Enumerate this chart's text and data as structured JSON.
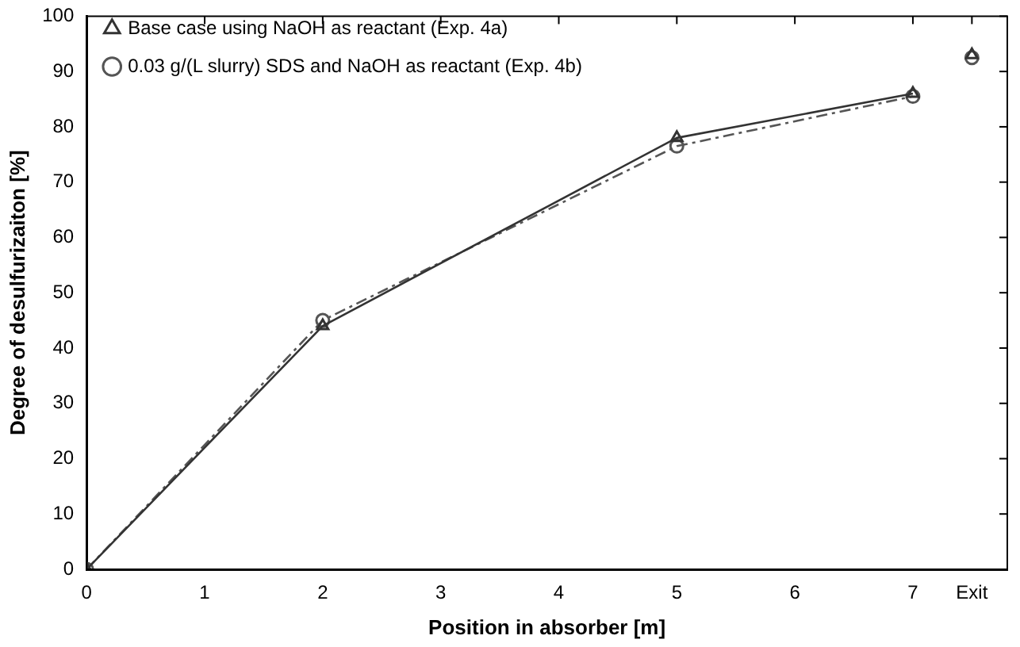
{
  "chart_data": {
    "type": "line",
    "xlabel": "Position in absorber [m]",
    "ylabel": "Degree of desulfurizaiton [%]",
    "xlim": [
      0,
      7.8
    ],
    "xticks": [
      0,
      1,
      2,
      3,
      4,
      5,
      6,
      7,
      {
        "value": 7.5,
        "label": "Exit"
      }
    ],
    "ylim": [
      0,
      100
    ],
    "yticks": [
      0,
      10,
      20,
      30,
      40,
      50,
      60,
      70,
      80,
      90,
      100
    ],
    "grid": false,
    "legend": "top left",
    "series": [
      {
        "name": "Base case using NaOH as reactant (Exp. 4a)",
        "color": "#333333",
        "marker": "triangle",
        "line_style": "solid",
        "x": [
          0,
          2,
          5,
          7,
          7.25,
          7.5
        ],
        "values": [
          0,
          44,
          78,
          86,
          null,
          93
        ]
      },
      {
        "name": "0.03 g/(L slurry) SDS and NaOH as reactant (Exp. 4b)",
        "color": "#555555",
        "marker": "circle",
        "line_style": "dashed",
        "x": [
          0,
          2,
          5,
          7,
          7.25,
          7.5
        ],
        "values": [
          0,
          45,
          76.5,
          85.5,
          null,
          92.5
        ]
      }
    ]
  }
}
